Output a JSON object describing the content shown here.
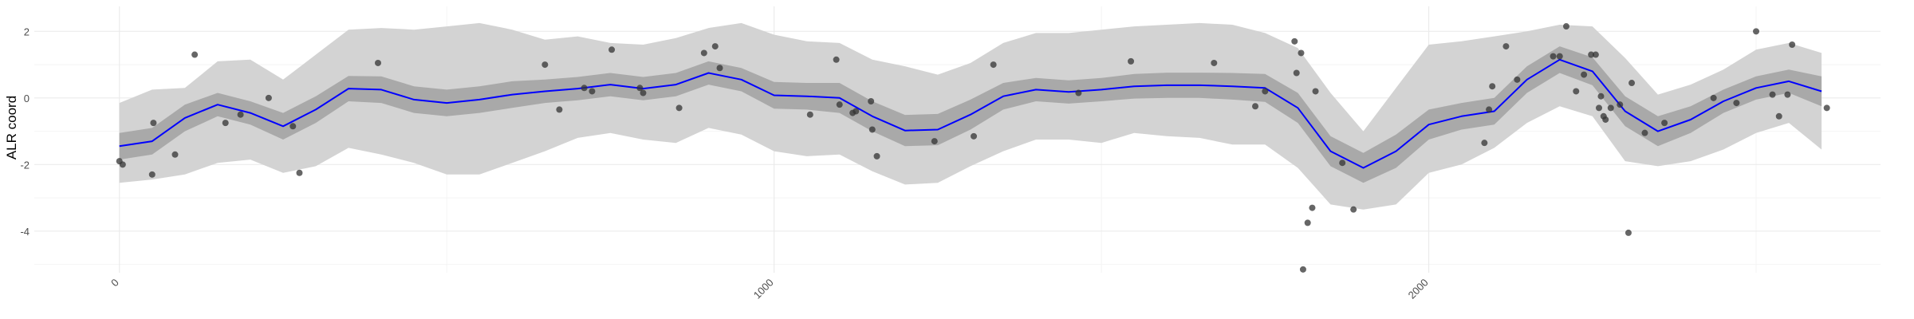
{
  "chart_data": {
    "type": "scatter",
    "title": "",
    "xlabel": "",
    "ylabel": "ALR coord",
    "xlim": [
      -130,
      2690
    ],
    "ylim": [
      -5.25,
      2.75
    ],
    "xticks": [
      0,
      1000,
      2000
    ],
    "xticks_minor": [
      500,
      1500,
      2500
    ],
    "yticks": [
      -4,
      -2,
      0,
      2
    ],
    "yticks_minor": [
      -5,
      -3,
      -1,
      1
    ],
    "grid": true,
    "legend": "none",
    "colors": {
      "line": "#0000ff",
      "outer_band": "#d3d3d3",
      "inner_band": "#a9a9a9",
      "points": "#333333",
      "grid_major": "#ebebeb",
      "grid_minor": "#f4f4f4"
    },
    "points": [
      {
        "x": 0,
        "y": -1.9
      },
      {
        "x": 5,
        "y": -2.0
      },
      {
        "x": 50,
        "y": -2.3
      },
      {
        "x": 52,
        "y": -0.75
      },
      {
        "x": 85,
        "y": -1.7
      },
      {
        "x": 115,
        "y": 1.3
      },
      {
        "x": 162,
        "y": -0.75
      },
      {
        "x": 185,
        "y": -0.5
      },
      {
        "x": 228,
        "y": 0.0
      },
      {
        "x": 265,
        "y": -0.85
      },
      {
        "x": 275,
        "y": -2.25
      },
      {
        "x": 395,
        "y": 1.05
      },
      {
        "x": 650,
        "y": 1.0
      },
      {
        "x": 672,
        "y": -0.35
      },
      {
        "x": 710,
        "y": 0.3
      },
      {
        "x": 722,
        "y": 0.2
      },
      {
        "x": 752,
        "y": 1.45
      },
      {
        "x": 795,
        "y": 0.3
      },
      {
        "x": 800,
        "y": 0.15
      },
      {
        "x": 855,
        "y": -0.3
      },
      {
        "x": 893,
        "y": 1.35
      },
      {
        "x": 910,
        "y": 1.55
      },
      {
        "x": 917,
        "y": 0.9
      },
      {
        "x": 1055,
        "y": -0.5
      },
      {
        "x": 1095,
        "y": 1.15
      },
      {
        "x": 1100,
        "y": -0.2
      },
      {
        "x": 1120,
        "y": -0.45
      },
      {
        "x": 1125,
        "y": -0.4
      },
      {
        "x": 1148,
        "y": -0.1
      },
      {
        "x": 1150,
        "y": -0.95
      },
      {
        "x": 1157,
        "y": -1.75
      },
      {
        "x": 1245,
        "y": -1.3
      },
      {
        "x": 1305,
        "y": -1.15
      },
      {
        "x": 1335,
        "y": 1.0
      },
      {
        "x": 1465,
        "y": 0.15
      },
      {
        "x": 1545,
        "y": 1.1
      },
      {
        "x": 1672,
        "y": 1.05
      },
      {
        "x": 1735,
        "y": -0.25
      },
      {
        "x": 1750,
        "y": 0.2
      },
      {
        "x": 1795,
        "y": 1.7
      },
      {
        "x": 1798,
        "y": 0.75
      },
      {
        "x": 1805,
        "y": 1.35
      },
      {
        "x": 1808,
        "y": -5.15
      },
      {
        "x": 1815,
        "y": -3.75
      },
      {
        "x": 1822,
        "y": -3.3
      },
      {
        "x": 1827,
        "y": 0.2
      },
      {
        "x": 1868,
        "y": -1.95
      },
      {
        "x": 1885,
        "y": -3.35
      },
      {
        "x": 2085,
        "y": -1.35
      },
      {
        "x": 2092,
        "y": -0.35
      },
      {
        "x": 2097,
        "y": 0.35
      },
      {
        "x": 2118,
        "y": 1.55
      },
      {
        "x": 2135,
        "y": 0.55
      },
      {
        "x": 2190,
        "y": 1.25
      },
      {
        "x": 2200,
        "y": 1.25
      },
      {
        "x": 2210,
        "y": 2.15
      },
      {
        "x": 2225,
        "y": 0.2
      },
      {
        "x": 2237,
        "y": 0.7
      },
      {
        "x": 2248,
        "y": 1.3
      },
      {
        "x": 2255,
        "y": 1.3
      },
      {
        "x": 2260,
        "y": -0.3
      },
      {
        "x": 2263,
        "y": 0.05
      },
      {
        "x": 2267,
        "y": -0.55
      },
      {
        "x": 2270,
        "y": -0.65
      },
      {
        "x": 2278,
        "y": -0.3
      },
      {
        "x": 2292,
        "y": -0.2
      },
      {
        "x": 2305,
        "y": -4.05
      },
      {
        "x": 2310,
        "y": 0.45
      },
      {
        "x": 2330,
        "y": -1.05
      },
      {
        "x": 2360,
        "y": -0.75
      },
      {
        "x": 2435,
        "y": 0.0
      },
      {
        "x": 2470,
        "y": -0.15
      },
      {
        "x": 2500,
        "y": 2.0
      },
      {
        "x": 2525,
        "y": 0.1
      },
      {
        "x": 2535,
        "y": -0.55
      },
      {
        "x": 2548,
        "y": 0.1
      },
      {
        "x": 2555,
        "y": 1.6
      },
      {
        "x": 2608,
        "y": -0.3
      }
    ],
    "smooth": {
      "x": [
        0,
        50,
        100,
        150,
        200,
        250,
        300,
        350,
        400,
        450,
        500,
        550,
        600,
        650,
        700,
        750,
        800,
        850,
        900,
        950,
        1000,
        1050,
        1100,
        1150,
        1200,
        1250,
        1300,
        1350,
        1400,
        1450,
        1500,
        1550,
        1600,
        1650,
        1700,
        1750,
        1800,
        1850,
        1900,
        1950,
        2000,
        2050,
        2100,
        2150,
        2200,
        2250,
        2300,
        2350,
        2400,
        2450,
        2500,
        2550,
        2600
      ],
      "y": [
        -1.45,
        -1.3,
        -0.6,
        -0.2,
        -0.45,
        -0.85,
        -0.35,
        0.28,
        0.25,
        -0.05,
        -0.15,
        -0.05,
        0.1,
        0.2,
        0.28,
        0.4,
        0.28,
        0.4,
        0.75,
        0.55,
        0.08,
        0.05,
        0.0,
        -0.55,
        -0.98,
        -0.95,
        -0.5,
        0.05,
        0.25,
        0.18,
        0.25,
        0.35,
        0.38,
        0.38,
        0.35,
        0.3,
        -0.3,
        -1.6,
        -2.1,
        -1.6,
        -0.8,
        -0.55,
        -0.4,
        0.55,
        1.15,
        0.8,
        -0.4,
        -1.0,
        -0.65,
        -0.1,
        0.3,
        0.5,
        0.2
      ],
      "inner_lower": [
        -1.85,
        -1.7,
        -1.0,
        -0.55,
        -0.8,
        -1.25,
        -0.75,
        -0.1,
        -0.15,
        -0.45,
        -0.55,
        -0.45,
        -0.3,
        -0.15,
        -0.07,
        0.05,
        -0.07,
        0.05,
        0.4,
        0.2,
        -0.32,
        -0.35,
        -0.45,
        -1.0,
        -1.45,
        -1.42,
        -0.95,
        -0.35,
        -0.1,
        -0.17,
        -0.1,
        -0.02,
        0.0,
        0.0,
        -0.05,
        -0.12,
        -0.75,
        -2.05,
        -2.55,
        -2.1,
        -1.25,
        -0.95,
        -0.8,
        0.15,
        0.75,
        0.38,
        -0.85,
        -1.45,
        -1.05,
        -0.45,
        -0.05,
        0.15,
        -0.25
      ],
      "inner_upper": [
        -1.05,
        -0.9,
        -0.2,
        0.15,
        -0.1,
        -0.45,
        0.05,
        0.66,
        0.65,
        0.35,
        0.25,
        0.35,
        0.5,
        0.55,
        0.63,
        0.75,
        0.63,
        0.75,
        1.1,
        0.9,
        0.48,
        0.45,
        0.45,
        -0.1,
        -0.51,
        -0.48,
        -0.05,
        0.45,
        0.6,
        0.53,
        0.6,
        0.72,
        0.76,
        0.76,
        0.75,
        0.72,
        0.15,
        -1.15,
        -1.65,
        -1.1,
        -0.35,
        -0.15,
        0.0,
        0.95,
        1.55,
        1.22,
        0.05,
        -0.55,
        -0.25,
        0.25,
        0.65,
        0.85,
        0.65
      ],
      "outer_lower": [
        -2.55,
        -2.45,
        -2.3,
        -1.95,
        -1.85,
        -2.25,
        -2.05,
        -1.5,
        -1.7,
        -1.95,
        -2.3,
        -2.3,
        -1.95,
        -1.6,
        -1.2,
        -1.05,
        -1.25,
        -1.35,
        -0.9,
        -1.1,
        -1.6,
        -1.75,
        -1.7,
        -2.2,
        -2.6,
        -2.55,
        -2.05,
        -1.6,
        -1.25,
        -1.25,
        -1.35,
        -1.05,
        -1.15,
        -1.2,
        -1.4,
        -1.4,
        -2.1,
        -3.2,
        -3.35,
        -3.2,
        -2.25,
        -2.0,
        -1.5,
        -0.75,
        -0.25,
        -0.55,
        -1.9,
        -2.05,
        -1.9,
        -1.55,
        -1.05,
        -0.75,
        -1.55
      ],
      "outer_upper": [
        -0.15,
        0.25,
        0.3,
        1.1,
        1.15,
        0.55,
        1.3,
        2.05,
        2.1,
        2.05,
        2.15,
        2.25,
        2.05,
        1.75,
        1.85,
        1.65,
        1.6,
        1.8,
        2.1,
        2.25,
        1.9,
        1.7,
        1.65,
        1.15,
        0.95,
        0.7,
        1.05,
        1.65,
        1.95,
        1.95,
        2.05,
        2.15,
        2.2,
        2.25,
        2.2,
        1.95,
        1.5,
        0.15,
        -1.0,
        0.3,
        1.6,
        1.7,
        1.85,
        2.0,
        2.2,
        2.15,
        1.2,
        0.1,
        0.4,
        0.85,
        1.45,
        1.65,
        1.35
      ]
    }
  }
}
